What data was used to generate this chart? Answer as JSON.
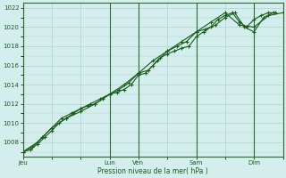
{
  "title": "",
  "xlabel": "Pression niveau de la mer( hPa )",
  "ylabel": "",
  "bg_color": "#d4eeed",
  "grid_color": "#aed4d0",
  "line_color": "#1a5c1a",
  "marker_color": "#1a5c1a",
  "ylim": [
    1006.5,
    1022.5
  ],
  "yticks": [
    1007,
    1009,
    1011,
    1013,
    1015,
    1017,
    1019,
    1021
  ],
  "xtick_labels": [
    "Jeu",
    "Lun",
    "Ven",
    "Sam",
    "Dim"
  ],
  "xtick_positions": [
    0,
    72,
    96,
    144,
    192
  ],
  "xlim": [
    0,
    216
  ],
  "vline_positions": [
    0,
    72,
    96,
    144,
    192
  ],
  "series1_x": [
    0,
    6,
    12,
    18,
    24,
    30,
    36,
    42,
    48,
    54,
    60,
    66,
    72,
    78,
    84,
    90,
    96,
    102,
    108,
    114,
    120,
    126,
    132,
    138,
    144,
    150,
    156,
    162,
    168,
    174,
    180,
    186,
    192,
    198,
    204,
    210
  ],
  "series1_y": [
    1007,
    1007.2,
    1007.8,
    1008.5,
    1009.2,
    1010.0,
    1010.5,
    1011.0,
    1011.5,
    1011.8,
    1012.0,
    1012.5,
    1013.0,
    1013.2,
    1013.5,
    1014.0,
    1015.0,
    1015.2,
    1016.0,
    1016.8,
    1017.2,
    1017.5,
    1017.8,
    1018.0,
    1019.0,
    1019.5,
    1020.0,
    1020.8,
    1021.2,
    1021.5,
    1020.5,
    1020.0,
    1020.8,
    1021.2,
    1021.5,
    1021.5
  ],
  "series2_x": [
    0,
    8,
    16,
    24,
    32,
    40,
    48,
    56,
    64,
    72,
    80,
    88,
    96,
    104,
    112,
    120,
    128,
    136,
    144,
    152,
    160,
    168,
    176,
    184,
    192,
    200,
    208
  ],
  "series2_y": [
    1007,
    1007.5,
    1008.5,
    1009.5,
    1010.5,
    1011.0,
    1011.5,
    1012.0,
    1012.5,
    1013.0,
    1013.5,
    1014.2,
    1015.2,
    1015.5,
    1016.5,
    1017.5,
    1018.0,
    1018.5,
    1019.5,
    1019.8,
    1020.2,
    1021.0,
    1021.5,
    1020.0,
    1019.5,
    1021.0,
    1021.5
  ],
  "series3_x": [
    0,
    12,
    24,
    36,
    48,
    60,
    72,
    84,
    96,
    108,
    120,
    132,
    144,
    156,
    168,
    180,
    192,
    204,
    216
  ],
  "series3_y": [
    1007,
    1008.0,
    1009.5,
    1010.5,
    1011.2,
    1012.0,
    1013.0,
    1014.0,
    1015.2,
    1016.5,
    1017.5,
    1018.5,
    1019.5,
    1020.5,
    1021.5,
    1020.2,
    1020.0,
    1021.2,
    1021.5
  ]
}
